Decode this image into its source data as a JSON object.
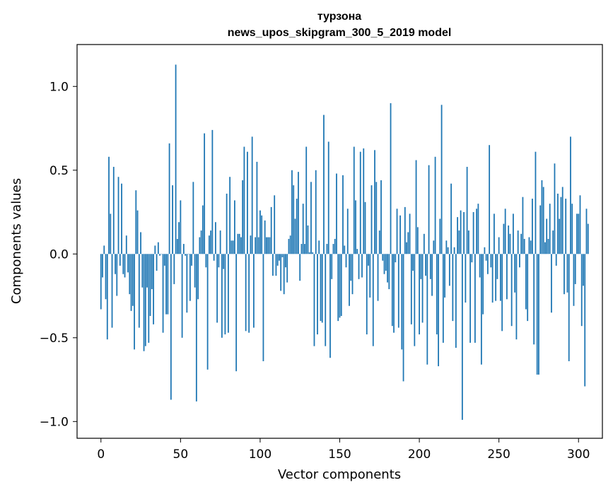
{
  "chart_data": {
    "type": "bar",
    "title_line1": "турзона",
    "title_line2": "news_upos_skipgram_300_5_2019 model",
    "xlabel": "Vector components",
    "ylabel": "Components values",
    "xlim": [
      -15,
      315
    ],
    "ylim": [
      -1.1,
      1.25
    ],
    "x_ticks": [
      0,
      50,
      100,
      150,
      200,
      250,
      300
    ],
    "x_tick_labels": [
      "0",
      "50",
      "100",
      "150",
      "200",
      "250",
      "300"
    ],
    "y_ticks": [
      -1.0,
      -0.5,
      0.0,
      0.5,
      1.0
    ],
    "y_tick_labels": [
      "−1.0",
      "−0.5",
      "0.0",
      "0.5",
      "1.0"
    ],
    "bar_color": "#1f77b4",
    "values": [
      -0.33,
      -0.14,
      0.05,
      -0.27,
      -0.51,
      0.58,
      0.24,
      -0.44,
      0.52,
      -0.12,
      -0.25,
      0.46,
      -0.07,
      0.42,
      -0.12,
      -0.14,
      0.11,
      -0.11,
      -0.24,
      -0.34,
      -0.31,
      -0.57,
      0.38,
      0.26,
      -0.44,
      0.13,
      -0.2,
      -0.58,
      -0.55,
      -0.2,
      -0.53,
      -0.37,
      -0.21,
      -0.42,
      0.05,
      -0.1,
      0.07,
      -0.01,
      0.0,
      -0.47,
      -0.07,
      -0.36,
      -0.36,
      0.66,
      -0.87,
      0.41,
      -0.18,
      1.13,
      0.09,
      0.19,
      0.32,
      -0.5,
      0.06,
      -0.01,
      -0.35,
      0.0,
      -0.28,
      -0.07,
      0.43,
      -0.2,
      -0.88,
      -0.27,
      0.1,
      0.14,
      0.29,
      0.72,
      -0.08,
      -0.69,
      0.11,
      0.14,
      0.74,
      -0.04,
      0.19,
      -0.41,
      -0.08,
      0.14,
      -0.5,
      -0.09,
      -0.48,
      0.36,
      -0.47,
      0.46,
      0.08,
      0.08,
      0.32,
      -0.7,
      0.12,
      0.12,
      0.1,
      0.44,
      0.64,
      -0.46,
      0.61,
      -0.47,
      0.11,
      0.7,
      -0.44,
      0.1,
      0.55,
      0.1,
      0.26,
      0.23,
      -0.64,
      0.2,
      0.1,
      0.1,
      0.1,
      0.28,
      -0.13,
      0.35,
      -0.13,
      -0.07,
      -0.04,
      -0.22,
      -0.02,
      -0.24,
      -0.08,
      -0.17,
      0.09,
      0.11,
      0.5,
      0.41,
      0.21,
      0.33,
      0.49,
      -0.16,
      0.06,
      0.3,
      0.06,
      0.64,
      0.17,
      0.01,
      0.43,
      0.01,
      -0.55,
      0.5,
      -0.48,
      0.08,
      -0.4,
      -0.41,
      0.83,
      -0.55,
      0.06,
      0.67,
      -0.62,
      -0.15,
      0.06,
      0.09,
      0.48,
      -0.4,
      -0.38,
      -0.37,
      0.47,
      0.05,
      -0.08,
      0.27,
      -0.31,
      -0.16,
      -0.24,
      0.64,
      0.32,
      0.03,
      -0.15,
      0.61,
      -0.14,
      0.63,
      0.31,
      -0.48,
      -0.07,
      -0.26,
      0.41,
      -0.55,
      0.62,
      0.43,
      -0.28,
      0.14,
      0.44,
      -0.04,
      -0.12,
      -0.1,
      -0.17,
      -0.21,
      0.9,
      -0.43,
      -0.47,
      -0.05,
      0.27,
      -0.44,
      0.23,
      -0.57,
      -0.76,
      0.28,
      0.07,
      0.13,
      0.24,
      -0.42,
      -0.1,
      -0.55,
      0.56,
      0.16,
      -0.48,
      -0.15,
      -0.41,
      0.12,
      -0.13,
      -0.66,
      0.53,
      -0.15,
      -0.25,
      0.08,
      0.58,
      -0.48,
      -0.67,
      0.21,
      0.89,
      -0.53,
      -0.26,
      0.08,
      0.04,
      -0.19,
      0.42,
      -0.4,
      0.04,
      -0.56,
      0.22,
      0.14,
      0.26,
      -0.99,
      0.25,
      -0.29,
      0.52,
      0.14,
      -0.53,
      -0.05,
      0.25,
      -0.53,
      0.27,
      0.3,
      -0.14,
      -0.66,
      -0.36,
      0.04,
      -0.04,
      -0.12,
      0.65,
      -0.08,
      -0.29,
      0.24,
      -0.28,
      -0.15,
      0.1,
      -0.28,
      -0.46,
      0.18,
      0.27,
      -0.27,
      0.17,
      0.12,
      -0.43,
      0.24,
      -0.23,
      -0.51,
      0.14,
      -0.08,
      0.12,
      0.34,
      0.09,
      -0.33,
      -0.4,
      0.1,
      0.08,
      0.33,
      -0.54,
      0.61,
      -0.72,
      -0.72,
      0.29,
      0.44,
      0.4,
      0.07,
      0.21,
      0.09,
      0.3,
      -0.35,
      0.14,
      0.54,
      -0.07,
      0.36,
      0.21,
      0.34,
      0.4,
      -0.24,
      0.33,
      -0.23,
      -0.64,
      0.7,
      0.3,
      -0.31,
      -0.18,
      0.24,
      0.24,
      0.35,
      -0.43,
      -0.19,
      -0.79,
      0.27,
      0.18
    ]
  }
}
